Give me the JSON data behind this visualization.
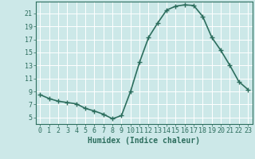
{
  "x": [
    0,
    1,
    2,
    3,
    4,
    5,
    6,
    7,
    8,
    9,
    10,
    11,
    12,
    13,
    14,
    15,
    16,
    17,
    18,
    19,
    20,
    21,
    22,
    23
  ],
  "y": [
    8.5,
    7.9,
    7.5,
    7.3,
    7.1,
    6.4,
    6.0,
    5.5,
    4.8,
    5.3,
    9.0,
    13.5,
    17.3,
    19.5,
    21.5,
    22.1,
    22.3,
    22.2,
    20.5,
    17.3,
    15.3,
    13.0,
    10.5,
    9.3
  ],
  "xlabel": "Humidex (Indice chaleur)",
  "line_color": "#2d6e5e",
  "bg_color": "#cce8e8",
  "grid_color": "#b8d8d8",
  "tick_color": "#2d6e5e",
  "spine_color": "#2d6e5e",
  "xlim": [
    -0.5,
    23.5
  ],
  "ylim": [
    4.0,
    22.8
  ],
  "yticks": [
    5,
    7,
    9,
    11,
    13,
    15,
    17,
    19,
    21
  ],
  "xticks": [
    0,
    1,
    2,
    3,
    4,
    5,
    6,
    7,
    8,
    9,
    10,
    11,
    12,
    13,
    14,
    15,
    16,
    17,
    18,
    19,
    20,
    21,
    22,
    23
  ],
  "marker": "+",
  "marker_size": 5,
  "line_width": 1.2,
  "xlabel_fontsize": 7,
  "tick_fontsize": 6
}
